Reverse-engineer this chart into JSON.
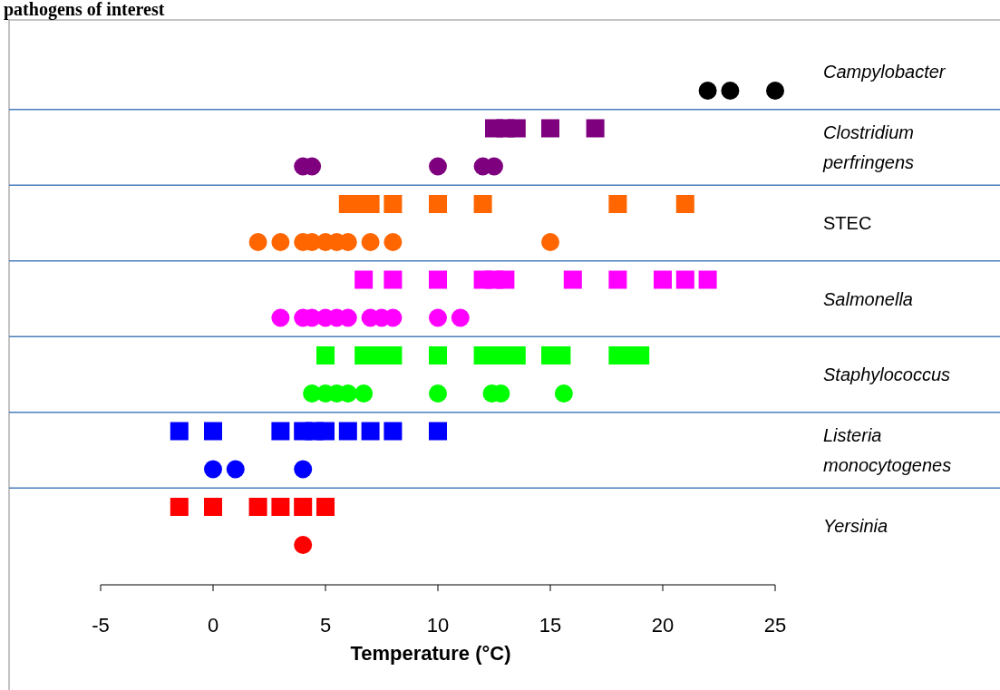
{
  "chart_data": {
    "type": "scatter",
    "orientation": "horizontal",
    "title": "pathogens of interest",
    "xlabel": "Temperature (°C)",
    "xlim": [
      -5,
      25
    ],
    "xticks": [
      -5,
      0,
      5,
      10,
      15,
      20,
      25
    ],
    "grid": "y",
    "categories": [
      "Campylobacter",
      "Clostridium perfringens",
      "STEC",
      "Salmonella",
      "Staphylococcus",
      "Listeria monocytogenes",
      "Yersinia"
    ],
    "series": [
      {
        "color": "#000000",
        "marker": "circle",
        "x": [
          "Campylobacter",
          "Campylobacter",
          "Campylobacter"
        ],
        "values": [
          22,
          23,
          25
        ]
      },
      {
        "color": "#7f007f",
        "marker": "square",
        "x": [
          "Clostridium perfringens",
          "Clostridium perfringens",
          "Clostridium perfringens",
          "Clostridium perfringens",
          "Clostridium perfringens"
        ],
        "values": [
          12.5,
          13,
          13.5,
          15,
          17
        ]
      },
      {
        "color": "#7f007f",
        "marker": "circle",
        "x": [
          "Clostridium perfringens",
          "Clostridium perfringens",
          "Clostridium perfringens",
          "Clostridium perfringens",
          "Clostridium perfringens"
        ],
        "values": [
          4,
          4.4,
          10,
          12,
          12.5
        ]
      },
      {
        "color": "#ff6600",
        "marker": "square",
        "x": [
          "STEC",
          "STEC",
          "STEC",
          "STEC",
          "STEC",
          "STEC",
          "STEC",
          "STEC"
        ],
        "values": [
          6,
          6.5,
          7,
          8,
          10,
          12,
          18,
          21
        ]
      },
      {
        "color": "#ff6600",
        "marker": "circle",
        "x": [
          "STEC",
          "STEC",
          "STEC",
          "STEC",
          "STEC",
          "STEC",
          "STEC",
          "STEC",
          "STEC",
          "STEC"
        ],
        "values": [
          2,
          3,
          4,
          4.4,
          5,
          5.5,
          6,
          7,
          8,
          15
        ]
      },
      {
        "color": "#ff00ff",
        "marker": "square",
        "x": [
          "Salmonella",
          "Salmonella",
          "Salmonella",
          "Salmonella",
          "Salmonella",
          "Salmonella",
          "Salmonella",
          "Salmonella",
          "Salmonella",
          "Salmonella",
          "Salmonella"
        ],
        "values": [
          6.7,
          8,
          10,
          12,
          12.5,
          13,
          16,
          18,
          20,
          21,
          22
        ]
      },
      {
        "color": "#ff00ff",
        "marker": "circle",
        "x": [
          "Salmonella",
          "Salmonella",
          "Salmonella",
          "Salmonella",
          "Salmonella",
          "Salmonella",
          "Salmonella",
          "Salmonella",
          "Salmonella",
          "Salmonella",
          "Salmonella"
        ],
        "values": [
          3,
          4,
          4.4,
          5,
          5.5,
          6,
          7,
          7.5,
          8,
          10,
          11
        ]
      },
      {
        "color": "#00ff00",
        "marker": "square",
        "x": [
          "Staphylococcus",
          "Staphylococcus",
          "Staphylococcus",
          "Staphylococcus",
          "Staphylococcus",
          "Staphylococcus",
          "Staphylococcus",
          "Staphylococcus",
          "Staphylococcus",
          "Staphylococcus",
          "Staphylococcus",
          "Staphylococcus",
          "Staphylococcus",
          "Staphylococcus"
        ],
        "values": [
          5,
          6.7,
          7.5,
          8,
          10,
          12,
          12.5,
          13,
          13.5,
          15,
          15.5,
          18,
          18.5,
          19
        ]
      },
      {
        "color": "#00ff00",
        "marker": "circle",
        "x": [
          "Staphylococcus",
          "Staphylococcus",
          "Staphylococcus",
          "Staphylococcus",
          "Staphylococcus",
          "Staphylococcus",
          "Staphylococcus",
          "Staphylococcus",
          "Staphylococcus"
        ],
        "values": [
          4.4,
          5,
          5.5,
          6,
          6.7,
          10,
          12.4,
          12.8,
          15.6
        ]
      },
      {
        "color": "#0000ff",
        "marker": "square",
        "x": [
          "Listeria monocytogenes",
          "Listeria monocytogenes",
          "Listeria monocytogenes",
          "Listeria monocytogenes",
          "Listeria monocytogenes",
          "Listeria monocytogenes",
          "Listeria monocytogenes",
          "Listeria monocytogenes",
          "Listeria monocytogenes",
          "Listeria monocytogenes"
        ],
        "values": [
          -1.5,
          0,
          3,
          4,
          4.5,
          5,
          6,
          7,
          8,
          10
        ]
      },
      {
        "color": "#0000ff",
        "marker": "circle",
        "x": [
          "Listeria monocytogenes",
          "Listeria monocytogenes",
          "Listeria monocytogenes"
        ],
        "values": [
          0,
          1,
          4
        ]
      },
      {
        "color": "#ff0000",
        "marker": "square",
        "x": [
          "Yersinia",
          "Yersinia",
          "Yersinia",
          "Yersinia",
          "Yersinia",
          "Yersinia"
        ],
        "values": [
          -1.5,
          0,
          2,
          3,
          4,
          5
        ]
      },
      {
        "color": "#ff0000",
        "marker": "circle",
        "x": [
          "Yersinia"
        ],
        "values": [
          4
        ]
      }
    ]
  }
}
